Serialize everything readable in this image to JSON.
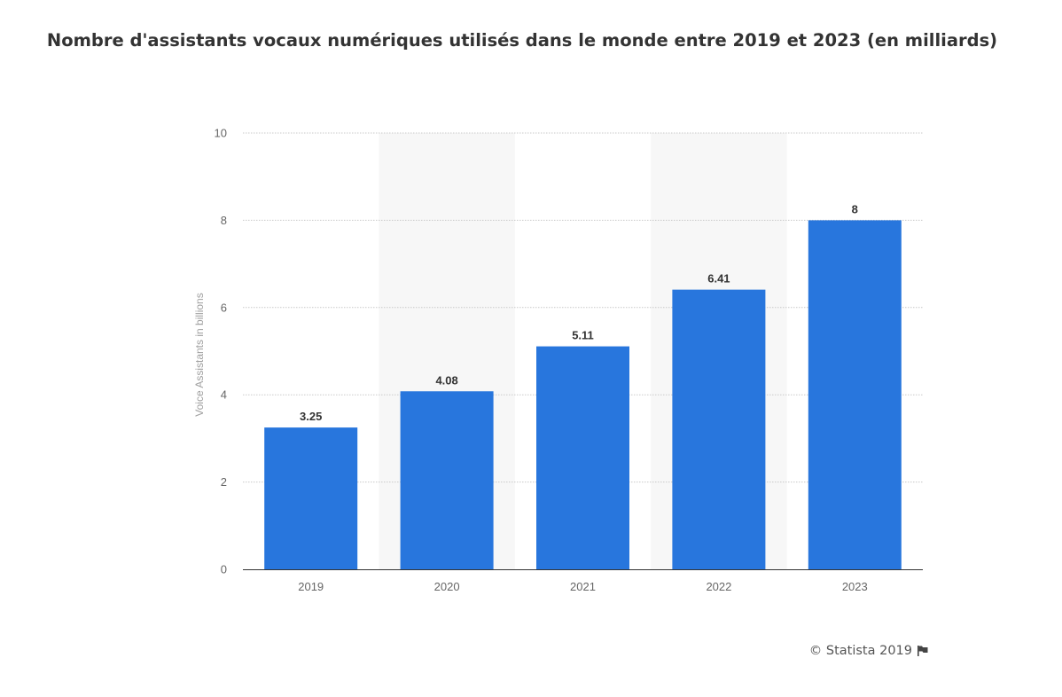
{
  "chart_data": {
    "type": "bar",
    "title": "Nombre d'assistants vocaux numériques utilisés dans le monde entre 2019 et 2023 (en milliards)",
    "categories": [
      "2019",
      "2020",
      "2021",
      "2022",
      "2023"
    ],
    "values": [
      3.25,
      4.08,
      5.11,
      6.41,
      8
    ],
    "value_labels": [
      "3.25",
      "4.08",
      "5.11",
      "6.41",
      "8"
    ],
    "xlabel": "",
    "ylabel": "Voice Assistants in billions",
    "ylim": [
      0,
      10
    ],
    "yticks": [
      "0",
      "2",
      "4",
      "6",
      "8",
      "10"
    ],
    "grid": true,
    "bar_color": "#2876dd",
    "alt_band_color": "#f7f7f7"
  },
  "credit": {
    "text": "© Statista 2019",
    "icon": "flag-icon"
  }
}
